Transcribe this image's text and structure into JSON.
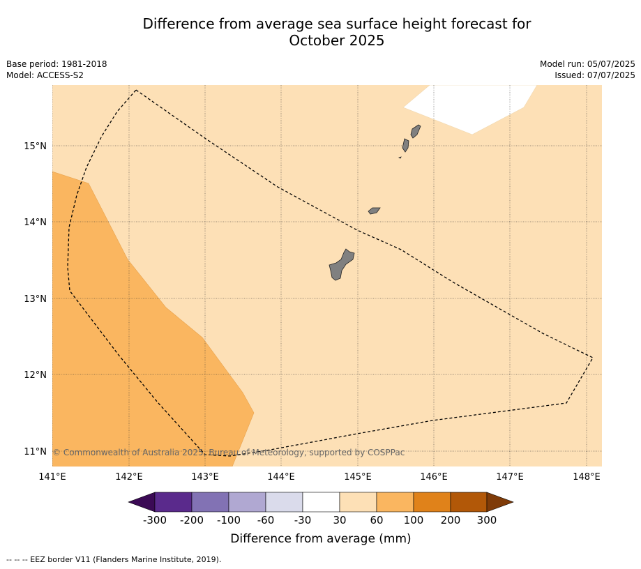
{
  "title": {
    "line1": "Difference from average sea surface height forecast for",
    "line2": "October 2025"
  },
  "meta": {
    "base_period": "Base period: 1981-2018",
    "model": "Model: ACCESS-S2",
    "model_run": "Model run: 05/07/2025",
    "issued": "Issued: 07/07/2025"
  },
  "map": {
    "lon_ticks": [
      "141°E",
      "142°E",
      "143°E",
      "144°E",
      "145°E",
      "146°E",
      "147°E",
      "148°E"
    ],
    "lat_ticks": [
      "15°N",
      "14°N",
      "13°N",
      "12°N",
      "11°N"
    ],
    "copyright": "© Commonwealth of Australia 2025, Bureau of Meteorology, supported by COSPPac",
    "colors": {
      "class_30_60": "#fde0b6",
      "class_60_100": "#fab660",
      "class_-30_30": "#ffffff",
      "land": "#808080"
    }
  },
  "colorbar": {
    "tick_labels": [
      "-300",
      "-200",
      "-100",
      "-60",
      "-30",
      "30",
      "60",
      "100",
      "200",
      "300"
    ],
    "colors": [
      "#3b0a55",
      "#5a2a8c",
      "#8272b4",
      "#b0a8d2",
      "#dadbeb",
      "#ffffff",
      "#fde0b6",
      "#fab660",
      "#e0821a",
      "#b25808",
      "#7f3b08"
    ],
    "label": "Difference from average (mm)"
  },
  "footer": {
    "legend": "-- -- -- EEZ border V11 (Flanders Marine Institute, 2019)."
  }
}
